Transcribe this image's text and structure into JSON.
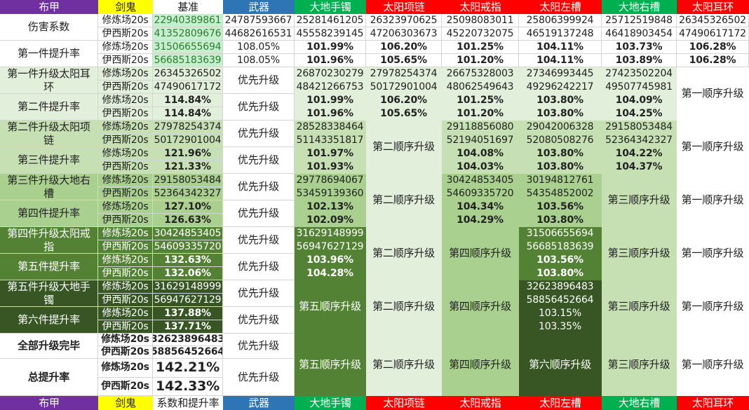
{
  "header": [
    "布甲",
    "剑鬼",
    "基准",
    "武器",
    "大地手镯",
    "太阳项链",
    "太阳戒指",
    "太阳左槽",
    "大地右槽",
    "太阳耳环"
  ],
  "footer": [
    "布甲",
    "剑鬼",
    "系数和提升率",
    "武器",
    "大地手镯",
    "太阳项链",
    "太阳戒指",
    "太阳左槽",
    "大地右槽",
    "太阳耳环"
  ],
  "header_colors": {
    "bg": [
      "#7030a0",
      "#ffff00",
      "#ffffff",
      "#2e75b6",
      "#00b050",
      "#ff0000",
      "#ff0000",
      "#ff0000",
      "#00b050",
      "#ff0000"
    ],
    "fg": [
      "#ffffff",
      "#222222",
      "#222222",
      "#ffffff",
      "#ffffff",
      "#ffffff",
      "#ffffff",
      "#ffffff",
      "#ffffff",
      "#ffffff"
    ]
  },
  "palette": {
    "white": "#ffffff",
    "base_bg": "#c6efce",
    "base_fg": "#2e7d32",
    "levels": [
      "#e2efda",
      "#c6e0b4",
      "#a9d08e",
      "#548235",
      "#375623"
    ],
    "grid": "#d4d4d4"
  },
  "servers": [
    "修炼场20s",
    "伊西斯20s"
  ],
  "damage": {
    "label": "伤害系数",
    "base": [
      "22940389861",
      "41352809676"
    ],
    "weapon": [
      "24787593667",
      "44682616531"
    ],
    "bracelet": [
      "25281461205",
      "45558239145"
    ],
    "necklace": [
      "26323970625",
      "47206303673"
    ],
    "ring": [
      "25098083011",
      "45220732075"
    ],
    "left_slot": [
      "25806399924",
      "46519137248"
    ],
    "right_slot": [
      "25712519848",
      "46418903454"
    ],
    "earring": [
      "26345326502",
      "47490617172"
    ]
  },
  "first_rate": {
    "label": "第一件提升率",
    "base": [
      "31506655694",
      "56685183639"
    ],
    "weapon": [
      "108.05%",
      "108.05%"
    ],
    "bracelet": [
      "101.99%",
      "101.96%"
    ],
    "necklace": [
      "106.20%",
      "105.65%"
    ],
    "ring": [
      "101.25%",
      "101.20%"
    ],
    "left_slot": [
      "104.11%",
      "104.11%"
    ],
    "right_slot": [
      "103.73%",
      "103.89%"
    ],
    "earring": [
      "106.28%",
      "106.28%"
    ]
  },
  "blocks": [
    {
      "label": "第一件升级太阳耳环",
      "rate_label": "第二件提升率",
      "base_values": [
        "26345326502",
        "47490617172"
      ],
      "base_rates": [
        "114.84%",
        "114.84%"
      ],
      "weapon": [
        "优先升级",
        "优先升级"
      ],
      "cols": {
        "bracelet": {
          "values": [
            "26870230279",
            "48421266753",
            "101.99%",
            "101.96%"
          ]
        },
        "necklace": {
          "values": [
            "27978254374",
            "50172901004",
            "106.20%",
            "105.65%"
          ]
        },
        "ring": {
          "values": [
            "26675328003",
            "48062549643",
            "101.25%",
            "101.20%"
          ]
        },
        "left_slot": {
          "values": [
            "27346993445",
            "49296242217",
            "103.80%",
            "103.80%"
          ]
        },
        "right_slot": {
          "values": [
            "27423502204",
            "49507745981",
            "104.09%",
            "104.25%"
          ]
        },
        "earring": {
          "label": "第一顺序升级"
        }
      }
    },
    {
      "label": "第二件升级太阳项链",
      "rate_label": "第三件提升率",
      "base_values": [
        "27978254374",
        "50172901004"
      ],
      "base_rates": [
        "121.96%",
        "121.33%"
      ],
      "weapon": [
        "优先升级",
        "优先升级"
      ],
      "cols": {
        "bracelet": {
          "values": [
            "28528338464",
            "51143351817",
            "101.97%",
            "101.93%"
          ]
        },
        "necklace": {
          "label": "第二顺序升级"
        },
        "ring": {
          "values": [
            "29118856080",
            "52194051697",
            "104.08%",
            "104.03%"
          ]
        },
        "left_slot": {
          "values": [
            "29042006328",
            "52080508276",
            "103.80%",
            "103.80%"
          ]
        },
        "right_slot": {
          "values": [
            "29158053484",
            "52364342327",
            "104.22%",
            "104.37%"
          ]
        },
        "earring": {
          "label": "第一顺序升级"
        }
      }
    },
    {
      "label": "第三件升级大地右槽",
      "rate_label": "第四件提升率",
      "base_values": [
        "29158053484",
        "52364342327"
      ],
      "base_rates": [
        "127.10%",
        "126.63%"
      ],
      "weapon": [
        "优先升级",
        "优先升级"
      ],
      "cols": {
        "bracelet": {
          "values": [
            "29778694067",
            "53459139360",
            "102.13%",
            "102.09%"
          ]
        },
        "necklace": {
          "label": "第二顺序升级"
        },
        "ring": {
          "values": [
            "30424853405",
            "54609335720",
            "104.34%",
            "104.29%"
          ]
        },
        "left_slot": {
          "values": [
            "30194812761",
            "54354852002",
            "103.56%",
            "103.80%"
          ]
        },
        "right_slot": {
          "label": "第三顺序升级"
        },
        "earring": {
          "label": "第一顺序升级"
        }
      }
    },
    {
      "label": "第四件升级太阳戒指",
      "rate_label": "第五件提升率",
      "base_values": [
        "30424853405",
        "54609335720"
      ],
      "base_rates": [
        "132.63%",
        "132.06%"
      ],
      "weapon": [
        "优先升级",
        "优先升级"
      ],
      "cols": {
        "bracelet": {
          "values": [
            "31629148999",
            "56947627129",
            "103.96%",
            "104.28%"
          ]
        },
        "necklace": {
          "label": "第二顺序升级"
        },
        "ring": {
          "label": "第四顺序升级"
        },
        "left_slot": {
          "values": [
            "31506655694",
            "56685183639",
            "103.56%",
            "103.80%"
          ]
        },
        "right_slot": {
          "label": "第三顺序升级"
        },
        "earring": {
          "label": "第一顺序升级"
        }
      }
    },
    {
      "label": "第五件升级大地手镯",
      "rate_label": "第六件提升率",
      "base_values": [
        "31629148999",
        "56947627129"
      ],
      "base_rates": [
        "137.88%",
        "137.71%"
      ],
      "weapon": [
        "优先升级",
        "优先升级"
      ],
      "cols": {
        "bracelet": {
          "label": "第五顺序升级"
        },
        "necklace": {
          "label": "第二顺序升级"
        },
        "ring": {
          "label": "第四顺序升级"
        },
        "left_slot": {
          "values": [
            "32623896483",
            "58856452664",
            "103.15%",
            "103.35%"
          ],
          "rates_bold": false
        },
        "right_slot": {
          "label": "第三顺序升级"
        },
        "earring": {
          "label": "第一顺序升级"
        }
      }
    }
  ],
  "final": {
    "label": "全部升级完毕",
    "base": [
      "32623896483",
      "58856452664"
    ],
    "weapon": "优先升级"
  },
  "total": {
    "label": "总提升率",
    "base": [
      "142.21%",
      "142.33%"
    ],
    "weapon": "优先升级"
  },
  "tail_cols": {
    "bracelet": "第五顺序升级",
    "necklace": "第二顺序升级",
    "ring": "第四顺序升级",
    "left_slot": "第六顺序升级",
    "right_slot": "第三顺序升级",
    "earring": "第一顺序升级"
  }
}
